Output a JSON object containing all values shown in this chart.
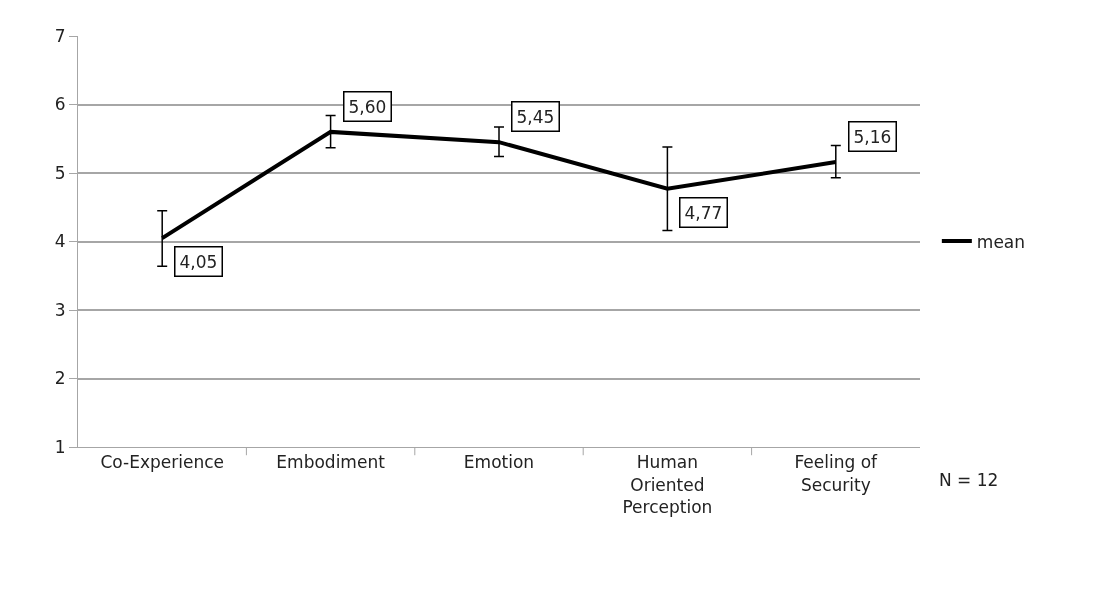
{
  "chart_data": {
    "type": "line",
    "categories": [
      "Co-Experience",
      "Embodiment",
      "Emotion",
      "Human Oriented Perception",
      "Feeling of Security"
    ],
    "series": [
      {
        "name": "mean",
        "color": "#000000",
        "values": [
          4.05,
          5.6,
          5.45,
          4.77,
          5.16
        ],
        "value_labels": [
          "4,05",
          "5,60",
          "5,45",
          "4,77",
          "5,16"
        ],
        "errors": [
          [
            3.64,
            4.45
          ],
          [
            5.37,
            5.84
          ],
          [
            5.24,
            5.67
          ],
          [
            4.16,
            5.38
          ],
          [
            4.93,
            5.4
          ]
        ]
      }
    ],
    "ylim": [
      1,
      7
    ],
    "yticks": [
      1,
      2,
      3,
      4,
      5,
      6,
      7
    ],
    "grid": "y",
    "legend": "right",
    "marker": "none",
    "line_style": "solid",
    "annotations": [
      "N = 12"
    ]
  }
}
